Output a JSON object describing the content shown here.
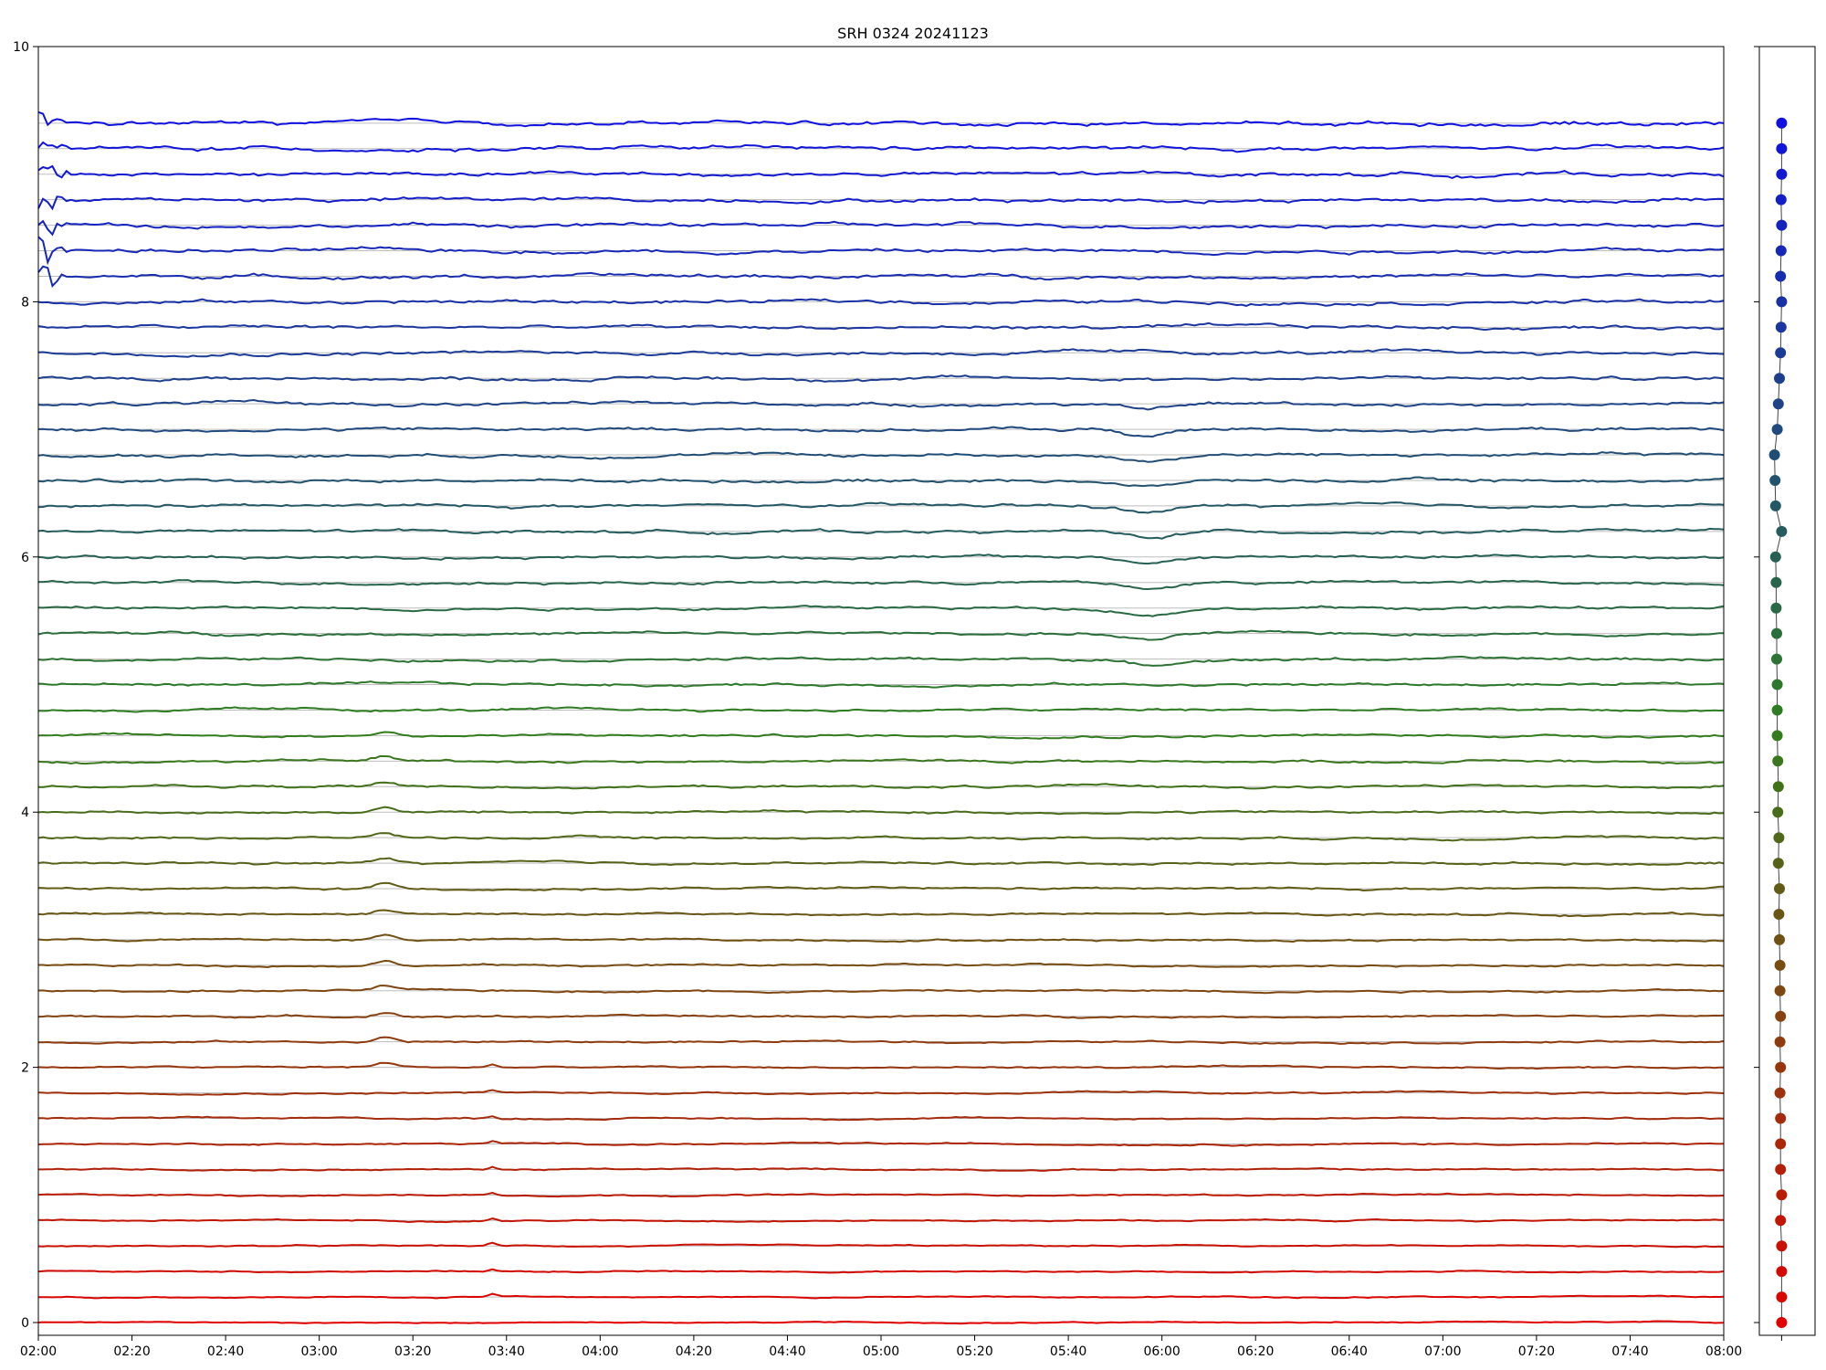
{
  "chart_data": [
    {
      "type": "line",
      "title": "SRH 0324 20241123",
      "xlabel": "",
      "ylabel": "",
      "x_ticks": [
        "02:00",
        "02:20",
        "02:40",
        "03:00",
        "03:20",
        "03:40",
        "04:00",
        "04:20",
        "04:40",
        "05:00",
        "05:20",
        "05:40",
        "06:00",
        "06:20",
        "06:40",
        "07:00",
        "07:20",
        "07:40",
        "08:00"
      ],
      "y_ticks": [
        "0",
        "2",
        "4",
        "6",
        "8",
        "10"
      ],
      "xlim": [
        "02:00",
        "08:00"
      ],
      "ylim": [
        -0.1,
        10
      ],
      "grid": "horizontal baseline lines at each channel offset",
      "legend": "none",
      "series_count": 48,
      "series_spacing": 0.2,
      "baseline_offsets": [
        0.0,
        0.2,
        0.4,
        0.6,
        0.8,
        1.0,
        1.2,
        1.4,
        1.6,
        1.8,
        2.0,
        2.2,
        2.4,
        2.6,
        2.8,
        3.0,
        3.2,
        3.4,
        3.6,
        3.8,
        4.0,
        4.2,
        4.4,
        4.6,
        4.8,
        5.0,
        5.2,
        5.4,
        5.6,
        5.8,
        6.0,
        6.2,
        6.4,
        6.6,
        6.8,
        7.0,
        7.2,
        7.4,
        7.6,
        7.8,
        8.0,
        8.2,
        8.4,
        8.6,
        8.8,
        9.0,
        9.2,
        9.4
      ],
      "color_gradient": {
        "bottom": "#e00000",
        "middle": "#2f7f1f",
        "top": "#1010e0"
      },
      "features": [
        {
          "time": "03:14",
          "description": "small positive spike visible on channels near 2.0–4.6"
        },
        {
          "time": "03:37",
          "description": "small spike on lower channels near 0.2–2.0"
        },
        {
          "time": "05:57",
          "description": "negative dip on channels near 5.2–7.2"
        },
        {
          "time": "02:00",
          "description": "transient oscillation at start on channels near 8.2–9.4"
        }
      ]
    },
    {
      "type": "scatter",
      "title": "",
      "y": [
        0.0,
        0.2,
        0.4,
        0.6,
        0.8,
        1.0,
        1.2,
        1.4,
        1.6,
        1.8,
        2.0,
        2.2,
        2.4,
        2.6,
        2.8,
        3.0,
        3.2,
        3.4,
        3.6,
        3.8,
        4.0,
        4.2,
        4.4,
        4.6,
        4.8,
        5.0,
        5.2,
        5.4,
        5.6,
        5.8,
        6.0,
        6.2,
        6.4,
        6.6,
        6.8,
        7.0,
        7.2,
        7.4,
        7.6,
        7.8,
        8.0,
        8.2,
        8.4,
        8.6,
        8.8,
        9.0,
        9.2,
        9.4
      ],
      "x": [
        0.0,
        0.0,
        0.0,
        0.0,
        -0.02,
        0.0,
        -0.02,
        -0.02,
        -0.02,
        -0.03,
        -0.02,
        -0.03,
        -0.02,
        -0.03,
        -0.03,
        -0.04,
        -0.05,
        -0.04,
        -0.06,
        -0.05,
        -0.07,
        -0.06,
        -0.07,
        -0.08,
        -0.08,
        -0.08,
        -0.09,
        -0.09,
        -0.1,
        -0.1,
        -0.11,
        0.0,
        -0.11,
        -0.12,
        -0.13,
        -0.08,
        -0.06,
        -0.04,
        -0.02,
        -0.01,
        0.0,
        -0.02,
        -0.01,
        0.0,
        -0.01,
        0.0,
        0.0,
        0.0
      ],
      "connected": true,
      "ylim": [
        -0.1,
        10
      ]
    }
  ]
}
